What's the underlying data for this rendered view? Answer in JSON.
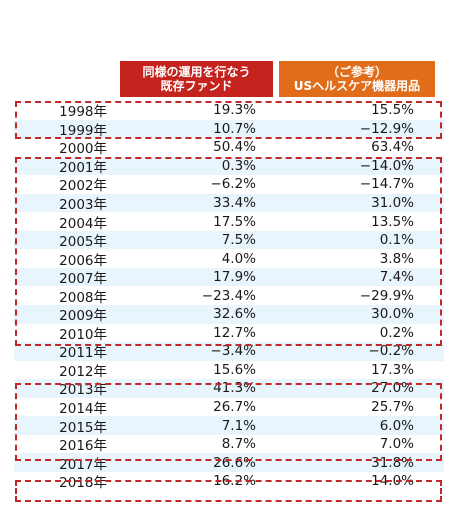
{
  "headers": {
    "col1_line1": "同様の運用を行なう",
    "col1_line2": "既存ファンド",
    "col2_line1": "（ご参考）",
    "col2_line2": "USヘルスケア機器用品"
  },
  "rows": [
    {
      "year": "1998年",
      "fund": "19.3%",
      "ref": "15.5%"
    },
    {
      "year": "1999年",
      "fund": "10.7%",
      "ref": "−12.9%"
    },
    {
      "year": "2000年",
      "fund": "50.4%",
      "ref": "63.4%"
    },
    {
      "year": "2001年",
      "fund": "0.3%",
      "ref": "−14.0%"
    },
    {
      "year": "2002年",
      "fund": "−6.2%",
      "ref": "−14.7%"
    },
    {
      "year": "2003年",
      "fund": "33.4%",
      "ref": "31.0%"
    },
    {
      "year": "2004年",
      "fund": "17.5%",
      "ref": "13.5%"
    },
    {
      "year": "2005年",
      "fund": "7.5%",
      "ref": "0.1%"
    },
    {
      "year": "2006年",
      "fund": "4.0%",
      "ref": "3.8%"
    },
    {
      "year": "2007年",
      "fund": "17.9%",
      "ref": "7.4%"
    },
    {
      "year": "2008年",
      "fund": "−23.4%",
      "ref": "−29.9%"
    },
    {
      "year": "2009年",
      "fund": "32.6%",
      "ref": "30.0%"
    },
    {
      "year": "2010年",
      "fund": "12.7%",
      "ref": "0.2%"
    },
    {
      "year": "2011年",
      "fund": "−3.4%",
      "ref": "−0.2%"
    },
    {
      "year": "2012年",
      "fund": "15.6%",
      "ref": "17.3%"
    },
    {
      "year": "2013年",
      "fund": "41.3%",
      "ref": "27.0%"
    },
    {
      "year": "2014年",
      "fund": "26.7%",
      "ref": "25.7%"
    },
    {
      "year": "2015年",
      "fund": "7.1%",
      "ref": "6.0%"
    },
    {
      "year": "2016年",
      "fund": "8.7%",
      "ref": "7.0%"
    },
    {
      "year": "2017年",
      "fund": "26.6%",
      "ref": "31.8%"
    },
    {
      "year": "2018年",
      "fund": "16.2%",
      "ref": "14.0%"
    }
  ],
  "colors": {
    "header1": "#c4241d",
    "header2": "#e16d1a",
    "stripe": "#e8f5fc",
    "highlight_border": "#c0282a"
  }
}
